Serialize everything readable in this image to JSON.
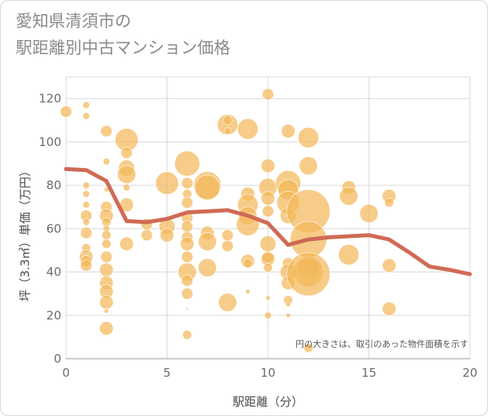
{
  "title_line1": "愛知県清須市の",
  "title_line2": "駅距離別中古マンション価格",
  "chart_data": {
    "type": "scatter",
    "title": "愛知県清須市の駅距離別中古マンション価格",
    "xlabel": "駅距離（分）",
    "ylabel": "坪（3.3㎡）単価（万円）",
    "xlim": [
      0,
      20
    ],
    "ylim": [
      0,
      130
    ],
    "xticks": [
      0,
      5,
      10,
      15,
      20
    ],
    "yticks": [
      0,
      20,
      40,
      60,
      80,
      100,
      120
    ],
    "grid": true,
    "note": "円の大きさは、取引のあった物件面積を示す",
    "colors": {
      "bubble": "#f2b95a",
      "line": "#d06a55",
      "grid": "#d9d9d9"
    },
    "series": [
      {
        "type": "bubble",
        "points": [
          {
            "x": 0,
            "y": 114,
            "s": 0.5
          },
          {
            "x": 1,
            "y": 117,
            "s": 0.3
          },
          {
            "x": 1,
            "y": 112,
            "s": 0.3
          },
          {
            "x": 1,
            "y": 80,
            "s": 0.3
          },
          {
            "x": 1,
            "y": 76,
            "s": 0.3
          },
          {
            "x": 1,
            "y": 71,
            "s": 0.3
          },
          {
            "x": 1,
            "y": 66,
            "s": 0.5
          },
          {
            "x": 1,
            "y": 63,
            "s": 0.3
          },
          {
            "x": 1,
            "y": 58,
            "s": 0.5
          },
          {
            "x": 1,
            "y": 51,
            "s": 0.4
          },
          {
            "x": 1,
            "y": 47,
            "s": 0.6
          },
          {
            "x": 1,
            "y": 45,
            "s": 0.5
          },
          {
            "x": 1,
            "y": 43,
            "s": 0.5
          },
          {
            "x": 2,
            "y": 105,
            "s": 0.5
          },
          {
            "x": 2,
            "y": 91,
            "s": 0.3
          },
          {
            "x": 2,
            "y": 78,
            "s": 0.2
          },
          {
            "x": 2,
            "y": 70,
            "s": 0.5
          },
          {
            "x": 2,
            "y": 66,
            "s": 0.6
          },
          {
            "x": 2,
            "y": 63,
            "s": 0.4
          },
          {
            "x": 2,
            "y": 60,
            "s": 0.3
          },
          {
            "x": 2,
            "y": 57,
            "s": 0.4
          },
          {
            "x": 2,
            "y": 53,
            "s": 0.4
          },
          {
            "x": 2,
            "y": 47,
            "s": 0.5
          },
          {
            "x": 2,
            "y": 41,
            "s": 0.6
          },
          {
            "x": 2,
            "y": 35,
            "s": 0.6
          },
          {
            "x": 2,
            "y": 31,
            "s": 0.6
          },
          {
            "x": 2,
            "y": 26,
            "s": 0.6
          },
          {
            "x": 2,
            "y": 22,
            "s": 0.2
          },
          {
            "x": 2,
            "y": 14,
            "s": 0.6
          },
          {
            "x": 3,
            "y": 101,
            "s": 1.0
          },
          {
            "x": 3,
            "y": 95,
            "s": 0.5
          },
          {
            "x": 3,
            "y": 88,
            "s": 0.7
          },
          {
            "x": 3,
            "y": 85,
            "s": 0.8
          },
          {
            "x": 3,
            "y": 79,
            "s": 0.3
          },
          {
            "x": 3,
            "y": 71,
            "s": 0.6
          },
          {
            "x": 3,
            "y": 53,
            "s": 0.6
          },
          {
            "x": 4,
            "y": 62,
            "s": 0.5
          },
          {
            "x": 4,
            "y": 57,
            "s": 0.5
          },
          {
            "x": 5,
            "y": 81,
            "s": 1.0
          },
          {
            "x": 5,
            "y": 61,
            "s": 0.7
          },
          {
            "x": 5,
            "y": 57,
            "s": 0.6
          },
          {
            "x": 6,
            "y": 90,
            "s": 1.1
          },
          {
            "x": 6,
            "y": 81,
            "s": 0.5
          },
          {
            "x": 6,
            "y": 76,
            "s": 0.4
          },
          {
            "x": 6,
            "y": 72,
            "s": 0.5
          },
          {
            "x": 6,
            "y": 65,
            "s": 0.5
          },
          {
            "x": 6,
            "y": 61,
            "s": 0.5
          },
          {
            "x": 6,
            "y": 56,
            "s": 0.5
          },
          {
            "x": 6,
            "y": 53,
            "s": 0.6
          },
          {
            "x": 6,
            "y": 47,
            "s": 0.5
          },
          {
            "x": 6,
            "y": 40,
            "s": 0.8
          },
          {
            "x": 6,
            "y": 36,
            "s": 0.5
          },
          {
            "x": 6,
            "y": 30,
            "s": 0.5
          },
          {
            "x": 6,
            "y": 11,
            "s": 0.4
          },
          {
            "x": 6,
            "y": 23,
            "s": 0.1
          },
          {
            "x": 7,
            "y": 80,
            "s": 1.2
          },
          {
            "x": 7,
            "y": 79,
            "s": 1.1
          },
          {
            "x": 7,
            "y": 58,
            "s": 0.6
          },
          {
            "x": 7,
            "y": 54,
            "s": 0.8
          },
          {
            "x": 7,
            "y": 42,
            "s": 0.8
          },
          {
            "x": 8,
            "y": 108,
            "s": 0.9
          },
          {
            "x": 8,
            "y": 110,
            "s": 0.4
          },
          {
            "x": 8,
            "y": 105,
            "s": 0.3
          },
          {
            "x": 8,
            "y": 57,
            "s": 0.5
          },
          {
            "x": 8,
            "y": 52,
            "s": 0.5
          },
          {
            "x": 8,
            "y": 26,
            "s": 0.8
          },
          {
            "x": 9,
            "y": 106,
            "s": 0.9
          },
          {
            "x": 9,
            "y": 76,
            "s": 0.6
          },
          {
            "x": 9,
            "y": 71,
            "s": 0.9
          },
          {
            "x": 9,
            "y": 66,
            "s": 0.8
          },
          {
            "x": 9,
            "y": 62,
            "s": 1.0
          },
          {
            "x": 9,
            "y": 45,
            "s": 0.6
          },
          {
            "x": 9,
            "y": 44,
            "s": 0.4
          },
          {
            "x": 9,
            "y": 31,
            "s": 0.2
          },
          {
            "x": 10,
            "y": 122,
            "s": 0.5
          },
          {
            "x": 10,
            "y": 89,
            "s": 0.6
          },
          {
            "x": 10,
            "y": 79,
            "s": 0.8
          },
          {
            "x": 10,
            "y": 74,
            "s": 0.6
          },
          {
            "x": 10,
            "y": 68,
            "s": 0.5
          },
          {
            "x": 10,
            "y": 53,
            "s": 0.7
          },
          {
            "x": 10,
            "y": 47,
            "s": 0.5
          },
          {
            "x": 10,
            "y": 46,
            "s": 0.6
          },
          {
            "x": 10,
            "y": 42,
            "s": 0.4
          },
          {
            "x": 10,
            "y": 28,
            "s": 0.2
          },
          {
            "x": 10,
            "y": 20,
            "s": 0.3
          },
          {
            "x": 11,
            "y": 105,
            "s": 0.6
          },
          {
            "x": 11,
            "y": 81,
            "s": 1.1
          },
          {
            "x": 11,
            "y": 78,
            "s": 0.9
          },
          {
            "x": 11,
            "y": 72,
            "s": 1.0
          },
          {
            "x": 11,
            "y": 66,
            "s": 0.7
          },
          {
            "x": 11,
            "y": 44,
            "s": 0.5
          },
          {
            "x": 11,
            "y": 40,
            "s": 0.7
          },
          {
            "x": 11,
            "y": 35,
            "s": 0.6
          },
          {
            "x": 11,
            "y": 27,
            "s": 0.4
          },
          {
            "x": 11,
            "y": 25,
            "s": 0.2
          },
          {
            "x": 11,
            "y": 20,
            "s": 0.2
          },
          {
            "x": 12,
            "y": 102,
            "s": 0.9
          },
          {
            "x": 12,
            "y": 89,
            "s": 0.8
          },
          {
            "x": 12,
            "y": 68,
            "s": 1.9
          },
          {
            "x": 12,
            "y": 55,
            "s": 1.6
          },
          {
            "x": 12,
            "y": 42,
            "s": 0.9
          },
          {
            "x": 12,
            "y": 40,
            "s": 1.3
          },
          {
            "x": 12,
            "y": 39,
            "s": 1.9
          },
          {
            "x": 12,
            "y": 5,
            "s": 0.4
          },
          {
            "x": 14,
            "y": 79,
            "s": 0.6
          },
          {
            "x": 14,
            "y": 75,
            "s": 0.8
          },
          {
            "x": 14,
            "y": 48,
            "s": 0.9
          },
          {
            "x": 15,
            "y": 67,
            "s": 0.8
          },
          {
            "x": 16,
            "y": 75,
            "s": 0.6
          },
          {
            "x": 16,
            "y": 72,
            "s": 0.4
          },
          {
            "x": 16,
            "y": 43,
            "s": 0.6
          },
          {
            "x": 16,
            "y": 23,
            "s": 0.6
          }
        ]
      },
      {
        "type": "line",
        "x": [
          0,
          1,
          2,
          3,
          4,
          5,
          6,
          7,
          8,
          9,
          10,
          11,
          12,
          13,
          14,
          15,
          16,
          17,
          18,
          19,
          20
        ],
        "y": [
          87.5,
          87,
          82,
          63.5,
          63,
          64.5,
          67.5,
          68,
          68.5,
          66,
          62.5,
          52.5,
          55,
          56,
          56.5,
          57,
          55,
          49,
          42.5,
          41,
          39
        ]
      }
    ]
  }
}
